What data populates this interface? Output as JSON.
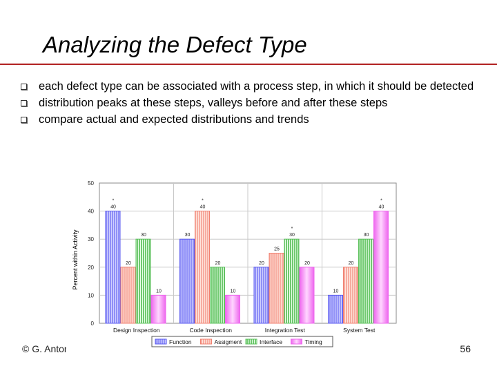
{
  "slide": {
    "title": "Analyzing the Defect Type",
    "bullets": [
      "each defect type can be associated with a process step, in which it should be detected",
      "distribution peaks at these steps, valleys before and after these steps",
      "compare actual and expected distributions and trends"
    ],
    "footer_left": "© G. Antoniol",
    "page_number": "56"
  },
  "colors": {
    "rule": "#b22222",
    "Function": "#5a5af0",
    "Assigment": "#f08070",
    "Interface": "#5cc05c",
    "Timing": "#ee66ee"
  },
  "chart_data": {
    "type": "bar",
    "categories": [
      "Design Inspection",
      "Code Inspection",
      "Integration Test",
      "System Test"
    ],
    "series": [
      {
        "name": "Function",
        "values": [
          40,
          30,
          20,
          10
        ]
      },
      {
        "name": "Assigment",
        "values": [
          20,
          40,
          25,
          20
        ]
      },
      {
        "name": "Interface",
        "values": [
          30,
          20,
          30,
          30
        ]
      },
      {
        "name": "Timing",
        "values": [
          10,
          10,
          20,
          40
        ]
      }
    ],
    "yticks": [
      0,
      10,
      20,
      30,
      40,
      50
    ],
    "ylim": [
      0,
      50
    ],
    "ylabel": "Percent within Activity",
    "title": "",
    "xlabel": "",
    "legend": "bottom",
    "grid": true,
    "peak_markers": [
      {
        "category": 0,
        "series": 0
      },
      {
        "category": 1,
        "series": 1
      },
      {
        "category": 2,
        "series": 2
      },
      {
        "category": 3,
        "series": 3
      }
    ],
    "peak_marker_symbol": "*"
  }
}
